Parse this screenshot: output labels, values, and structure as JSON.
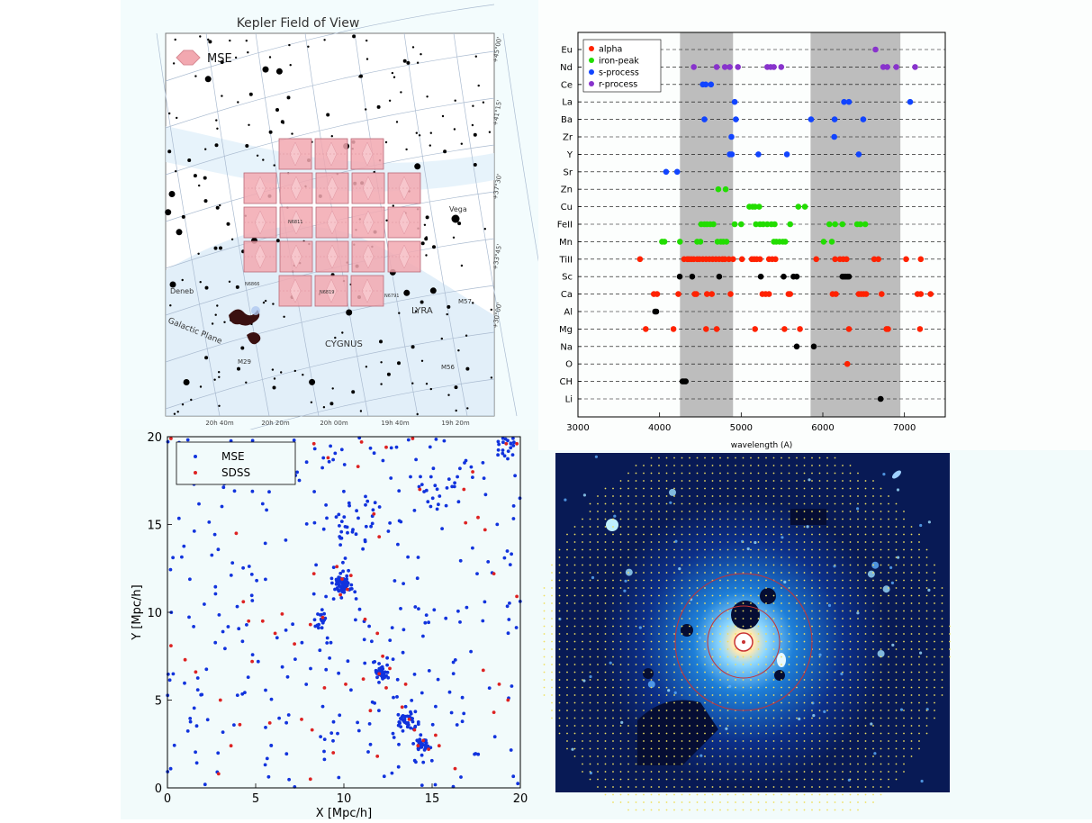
{
  "colors": {
    "alpha": "#ff2200",
    "iron_peak": "#22dd00",
    "s_process": "#1144ff",
    "r_process": "#8833cc",
    "other": "#000000",
    "mse_points": "#1133dd",
    "sdss_points": "#dd2222",
    "kepler_tile": "#f2a8b0"
  },
  "kepler": {
    "title": "Kepler Field of View",
    "legend_label": "MSE",
    "dec_labels": [
      "+45°00'",
      "+41°15'",
      "+37°30'",
      "+33°45'",
      "+30°00'"
    ],
    "ra_labels": [
      "20h 40m",
      "20h 20m",
      "20h 00m",
      "19h 40m",
      "19h 20m"
    ],
    "labels": {
      "deneb": "Deneb",
      "vega": "Vega",
      "lyra": "LYRA",
      "cygnus": "CYGNUS",
      "galactic_plane": "Galactic Plane",
      "m29": "M29",
      "m56": "M56",
      "m57": "M57",
      "n6866": "N6866",
      "n6819": "N6819",
      "n6791": "N6791",
      "n6811": "N6811"
    },
    "tile_rows": [
      3,
      5,
      5,
      5,
      3
    ]
  },
  "chart_data": [
    {
      "type": "scatter",
      "xlabel": "wavelength (A)",
      "xlim": [
        3000,
        7500
      ],
      "xticks": [
        3000,
        4000,
        5000,
        6000,
        7000
      ],
      "categories": [
        "Eu",
        "Nd",
        "Ce",
        "La",
        "Ba",
        "Zr",
        "Y",
        "Sr",
        "Zn",
        "Cu",
        "FeII",
        "Mn",
        "TiII",
        "Sc",
        "Ca",
        "Al",
        "Mg",
        "Na",
        "O",
        "CH",
        "Li"
      ],
      "category_labels": [
        "Eu",
        "Nd",
        "Ce",
        "La",
        "Ba",
        "Zr",
        "Y",
        "Sr",
        "Zn",
        "Cu",
        "FeII",
        "Mn",
        "TiII",
        "Sc",
        "Ca",
        "Al",
        "Mg",
        "Na",
        "O",
        "CH",
        "Li"
      ],
      "shaded_ranges": [
        [
          4250,
          4900
        ],
        [
          5850,
          6950
        ]
      ],
      "legend": [
        {
          "name": "alpha",
          "key": "alpha"
        },
        {
          "name": "iron-peak",
          "key": "iron_peak"
        },
        {
          "name": "s-process",
          "key": "s_process"
        },
        {
          "name": "r-process",
          "key": "r_process"
        }
      ],
      "series": [
        {
          "element": "Eu",
          "group": "r_process",
          "x": [
            6645
          ]
        },
        {
          "element": "Nd",
          "group": "r_process",
          "x": [
            4420,
            4700,
            4800,
            4860,
            4960,
            5320,
            5360,
            5400,
            5490,
            6740,
            6790,
            6900,
            7130
          ]
        },
        {
          "element": "Ce",
          "group": "s_process",
          "x": [
            4530,
            4565,
            4630
          ]
        },
        {
          "element": "La",
          "group": "s_process",
          "x": [
            4920,
            6260,
            6320,
            7070
          ]
        },
        {
          "element": "Ba",
          "group": "s_process",
          "x": [
            4550,
            4935,
            5855,
            6145,
            6495
          ]
        },
        {
          "element": "Zr",
          "group": "s_process",
          "x": [
            4880,
            6140
          ]
        },
        {
          "element": "Y",
          "group": "s_process",
          "x": [
            4860,
            4885,
            5210,
            5560,
            6440
          ]
        },
        {
          "element": "Sr",
          "group": "s_process",
          "x": [
            4080,
            4215
          ]
        },
        {
          "element": "Zn",
          "group": "iron_peak",
          "x": [
            4720,
            4810
          ]
        },
        {
          "element": "Cu",
          "group": "iron_peak",
          "x": [
            5100,
            5140,
            5170,
            5220,
            5700,
            5780
          ]
        },
        {
          "element": "FeII",
          "group": "iron_peak",
          "x": [
            4510,
            4550,
            4580,
            4620,
            4660,
            4920,
            5000,
            5180,
            5230,
            5270,
            5320,
            5370,
            5410,
            5600,
            6080,
            6150,
            6240,
            6420,
            6460,
            6520
          ]
        },
        {
          "element": "Mn",
          "group": "iron_peak",
          "x": [
            4030,
            4060,
            4250,
            4460,
            4500,
            4710,
            4750,
            4780,
            4820,
            5400,
            5430,
            5470,
            5510,
            5540,
            6010,
            6110
          ]
        },
        {
          "element": "TiII",
          "group": "alpha",
          "x": [
            3760,
            4300,
            4340,
            4360,
            4390,
            4420,
            4460,
            4490,
            4530,
            4570,
            4610,
            4650,
            4690,
            4730,
            4770,
            4800,
            4850,
            4900,
            5010,
            5130,
            5160,
            5190,
            5230,
            5340,
            5380,
            5420,
            5920,
            6150,
            6210,
            6250,
            6290,
            6630,
            6680,
            7020,
            7200
          ]
        },
        {
          "element": "Sc",
          "group": "other",
          "x": [
            4246,
            4400,
            4730,
            5240,
            5520,
            5640,
            5680,
            6240,
            6260,
            6280,
            6300,
            6320
          ]
        },
        {
          "element": "Ca",
          "group": "alpha",
          "x": [
            3930,
            3970,
            4230,
            4430,
            4450,
            4580,
            4640,
            4870,
            5260,
            5300,
            5340,
            5580,
            5600,
            6120,
            6160,
            6440,
            6470,
            6500,
            6530,
            6720,
            7160,
            7200,
            7320
          ]
        },
        {
          "element": "Al",
          "group": "other",
          "x": [
            3945,
            3960
          ]
        },
        {
          "element": "Mg",
          "group": "alpha",
          "x": [
            3830,
            4170,
            4570,
            4700,
            5170,
            5530,
            5720,
            6320,
            6780,
            6800,
            7190
          ]
        },
        {
          "element": "Na",
          "group": "other",
          "x": [
            5680,
            5890
          ]
        },
        {
          "element": "O",
          "group": "alpha",
          "x": [
            6300
          ]
        },
        {
          "element": "CH",
          "group": "other",
          "x": [
            4280,
            4300,
            4320
          ]
        },
        {
          "element": "Li",
          "group": "other",
          "x": [
            6708
          ]
        }
      ]
    },
    {
      "type": "scatter",
      "xlabel": "X [Mpc/h]",
      "ylabel": "Y [Mpc/h]",
      "xlim": [
        0,
        20
      ],
      "ylim": [
        0,
        20
      ],
      "xticks": [
        0,
        5,
        10,
        15,
        20
      ],
      "yticks": [
        0,
        5,
        10,
        15,
        20
      ],
      "legend_placement": "top-left",
      "series": [
        {
          "name": "MSE",
          "key": "mse_points",
          "clusters": [
            {
              "cx": 9.9,
              "cy": 11.6,
              "spread": 0.35,
              "count": 60
            },
            {
              "cx": 12.2,
              "cy": 6.6,
              "spread": 0.3,
              "count": 30
            },
            {
              "cx": 13.6,
              "cy": 3.9,
              "spread": 0.35,
              "count": 40
            },
            {
              "cx": 14.4,
              "cy": 2.5,
              "spread": 0.3,
              "count": 30
            },
            {
              "cx": 8.6,
              "cy": 9.6,
              "spread": 0.35,
              "count": 18
            },
            {
              "cx": 10.5,
              "cy": 15.3,
              "spread": 1.2,
              "count": 25
            },
            {
              "cx": 19.2,
              "cy": 19.6,
              "spread": 0.5,
              "count": 20
            },
            {
              "cx": 14.7,
              "cy": 16.9,
              "spread": 0.8,
              "count": 14
            }
          ],
          "background_count": 330
        },
        {
          "name": "SDSS",
          "key": "sdss_points",
          "points": [
            [
              0.2,
              19.9
            ],
            [
              8.3,
              19.6
            ],
            [
              9.1,
              18.8
            ],
            [
              11.0,
              19.7
            ],
            [
              10.8,
              18.3
            ],
            [
              14.3,
              17.0
            ],
            [
              16.8,
              17.0
            ],
            [
              17.3,
              18.0
            ],
            [
              19.2,
              19.6
            ],
            [
              19.8,
              19.6
            ],
            [
              12.4,
              19.4
            ],
            [
              13.9,
              19.9
            ],
            [
              16.9,
              15.1
            ],
            [
              17.6,
              15.4
            ],
            [
              11.7,
              15.6
            ],
            [
              12.0,
              14.3
            ],
            [
              9.6,
              12.6
            ],
            [
              9.9,
              11.9
            ],
            [
              10.2,
              11.3
            ],
            [
              10.4,
              12.1
            ],
            [
              9.8,
              11.0
            ],
            [
              8.3,
              12.2
            ],
            [
              8.1,
              9.3
            ],
            [
              8.8,
              9.7
            ],
            [
              6.5,
              9.9
            ],
            [
              4.3,
              10.6
            ],
            [
              4.6,
              9.5
            ],
            [
              5.4,
              9.5
            ],
            [
              6.1,
              8.8
            ],
            [
              7.2,
              8.2
            ],
            [
              4.8,
              7.2
            ],
            [
              11.2,
              9.6
            ],
            [
              11.9,
              8.8
            ],
            [
              12.2,
              7.5
            ],
            [
              12.0,
              6.5
            ],
            [
              12.6,
              6.8
            ],
            [
              11.1,
              6.2
            ],
            [
              11.5,
              4.4
            ],
            [
              13.3,
              4.6
            ],
            [
              13.7,
              3.9
            ],
            [
              14.0,
              3.3
            ],
            [
              14.5,
              2.7
            ],
            [
              14.2,
              2.4
            ],
            [
              14.8,
              2.2
            ],
            [
              15.2,
              3.0
            ],
            [
              13.5,
              5.9
            ],
            [
              15.4,
              2.4
            ],
            [
              16.3,
              1.1
            ],
            [
              11.9,
              1.8
            ],
            [
              9.4,
              2.0
            ],
            [
              8.2,
              3.3
            ],
            [
              7.6,
              3.9
            ],
            [
              8.9,
              5.7
            ],
            [
              5.8,
              3.7
            ],
            [
              4.1,
              3.6
            ],
            [
              3.6,
              2.4
            ],
            [
              2.9,
              0.8
            ],
            [
              8.1,
              0.5
            ],
            [
              3.0,
              5.0
            ],
            [
              1.6,
              6.6
            ],
            [
              1.0,
              7.3
            ],
            [
              0.2,
              8.1
            ],
            [
              18.8,
              5.9
            ],
            [
              19.3,
              5.0
            ],
            [
              18.5,
              4.3
            ],
            [
              17.9,
              6.7
            ],
            [
              19.8,
              10.9
            ],
            [
              18.5,
              12.2
            ],
            [
              18.0,
              14.7
            ],
            [
              3.9,
              14.5
            ],
            [
              12.4,
              5.7
            ],
            [
              10.1,
              5.9
            ]
          ]
        }
      ]
    }
  ]
}
